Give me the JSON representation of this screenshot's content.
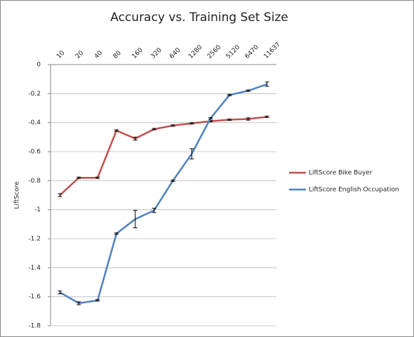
{
  "chart_data": {
    "type": "line",
    "title": "Accuracy vs. Training Set Size",
    "y_label": "LiftScore",
    "categories": [
      "10",
      "20",
      "40",
      "80",
      "160",
      "320",
      "640",
      "1280",
      "2560",
      "5120",
      "6470",
      "11637"
    ],
    "series": [
      {
        "name": "LiftScore Bike Buyer",
        "color": "#c0504d",
        "values": [
          -0.9,
          -0.78,
          -0.78,
          -0.455,
          -0.51,
          -0.445,
          -0.42,
          -0.405,
          -0.39,
          -0.38,
          -0.375,
          -0.36
        ],
        "errors": [
          0.01,
          0.005,
          0.005,
          0.005,
          0.01,
          0.005,
          0.005,
          0.005,
          0.005,
          0.005,
          0.008,
          0.005
        ]
      },
      {
        "name": "LiftScore English Occupation",
        "color": "#4f81bd",
        "values": [
          -1.57,
          -1.645,
          -1.625,
          -1.165,
          -1.065,
          -1.005,
          -0.8,
          -0.615,
          -0.37,
          -0.21,
          -0.18,
          -0.135
        ],
        "errors": [
          0.01,
          0.01,
          0.005,
          0.005,
          0.06,
          0.015,
          0.005,
          0.035,
          0.005,
          0.005,
          0.005,
          0.015
        ]
      }
    ],
    "ylim": [
      -1.8,
      0
    ],
    "yticks": [
      0,
      -0.2,
      -0.4,
      -0.6,
      -0.8,
      -1,
      -1.2,
      -1.4,
      -1.6,
      -1.8
    ],
    "grid": true,
    "legend": "right"
  }
}
